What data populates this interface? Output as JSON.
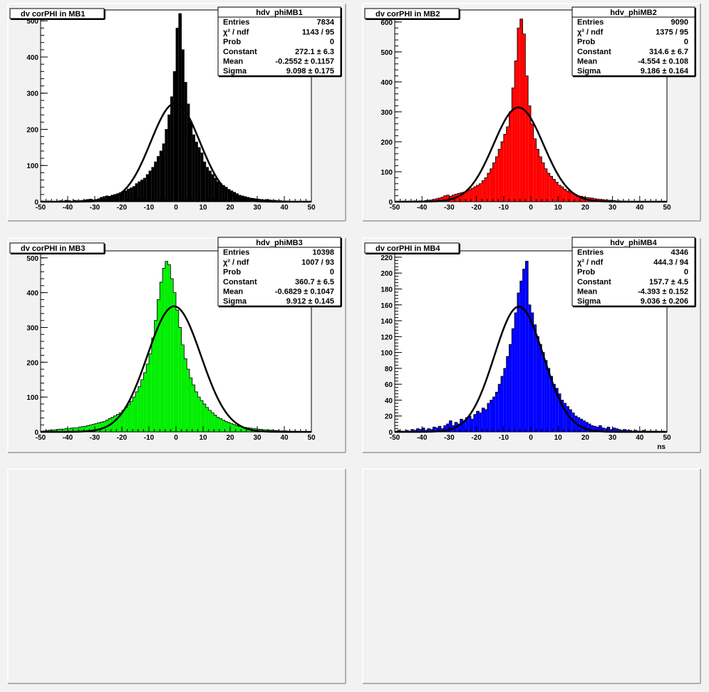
{
  "chart_data": [
    {
      "type": "bar",
      "title": "dv corPHI in MB1",
      "stats": {
        "name": "hdv_phiMB1",
        "rows": [
          {
            "label": "Entries",
            "value": "7834"
          },
          {
            "label": "χ² / ndf",
            "value": "1143 / 95"
          },
          {
            "label": "Prob",
            "value": "0"
          },
          {
            "label": "Constant",
            "value": "272.1 ± 6.3"
          },
          {
            "label": "Mean",
            "value": "-0.2552 ± 0.1157"
          },
          {
            "label": "Sigma",
            "value": "9.098 ± 0.175"
          }
        ]
      },
      "xlabel": "",
      "xlim": [
        -50,
        50
      ],
      "xticks": [
        -50,
        -40,
        -30,
        -20,
        -10,
        0,
        10,
        20,
        30,
        40,
        50
      ],
      "ylim": [
        0,
        530
      ],
      "yticks": [
        0,
        100,
        200,
        300,
        400,
        500
      ],
      "fill_color": "#000000",
      "fit": {
        "constant": 272.1,
        "mean": -0.2552,
        "sigma": 9.098
      },
      "bin_edges_start": -50,
      "bin_width": 1,
      "values": [
        2,
        1,
        2,
        2,
        1,
        1,
        2,
        3,
        2,
        4,
        3,
        1,
        4,
        3,
        3,
        4,
        5,
        6,
        7,
        5,
        6,
        8,
        12,
        14,
        16,
        15,
        18,
        20,
        22,
        25,
        28,
        30,
        35,
        38,
        42,
        50,
        55,
        60,
        65,
        75,
        85,
        95,
        110,
        125,
        140,
        160,
        200,
        240,
        290,
        360,
        480,
        520,
        420,
        330,
        270,
        220,
        185,
        165,
        150,
        135,
        110,
        95,
        85,
        75,
        65,
        55,
        50,
        45,
        40,
        34,
        30,
        26,
        22,
        18,
        16,
        14,
        12,
        10,
        9,
        8,
        7,
        6,
        5,
        6,
        5,
        4,
        4,
        3,
        3,
        2,
        2,
        2,
        1,
        1,
        1,
        1,
        1,
        1,
        0,
        1
      ]
    },
    {
      "type": "bar",
      "title": "dv corPHI in MB2",
      "stats": {
        "name": "hdv_phiMB2",
        "rows": [
          {
            "label": "Entries",
            "value": "9090"
          },
          {
            "label": "χ² / ndf",
            "value": "1375 / 95"
          },
          {
            "label": "Prob",
            "value": "0"
          },
          {
            "label": "Constant",
            "value": "314.6 ± 6.7"
          },
          {
            "label": "Mean",
            "value": "-4.554 ± 0.108"
          },
          {
            "label": "Sigma",
            "value": "9.186 ± 0.164"
          }
        ]
      },
      "xlabel": "",
      "xlim": [
        -50,
        50
      ],
      "xticks": [
        -50,
        -40,
        -30,
        -20,
        -10,
        0,
        10,
        20,
        30,
        40,
        50
      ],
      "ylim": [
        0,
        640
      ],
      "yticks": [
        0,
        100,
        200,
        300,
        400,
        500,
        600
      ],
      "fill_color": "#ff0000",
      "fit": {
        "constant": 314.6,
        "mean": -4.554,
        "sigma": 9.186
      },
      "bin_edges_start": -50,
      "bin_width": 1,
      "values": [
        1,
        1,
        1,
        2,
        1,
        2,
        2,
        3,
        2,
        3,
        2,
        4,
        5,
        6,
        8,
        10,
        12,
        15,
        20,
        22,
        18,
        22,
        25,
        28,
        30,
        32,
        36,
        40,
        45,
        50,
        55,
        60,
        70,
        80,
        95,
        110,
        130,
        150,
        175,
        200,
        225,
        250,
        300,
        380,
        470,
        580,
        610,
        560,
        420,
        320,
        260,
        210,
        175,
        150,
        130,
        110,
        95,
        85,
        75,
        65,
        55,
        50,
        42,
        36,
        32,
        28,
        24,
        20,
        18,
        16,
        14,
        13,
        12,
        10,
        9,
        8,
        7,
        6,
        5,
        5,
        4,
        3,
        3,
        2,
        2,
        2,
        1,
        1,
        1,
        1,
        1,
        1,
        0,
        1,
        0,
        1,
        0,
        0,
        0,
        0
      ]
    },
    {
      "type": "bar",
      "title": "dv corPHI in MB3",
      "stats": {
        "name": "hdv_phiMB3",
        "rows": [
          {
            "label": "Entries",
            "value": "10398"
          },
          {
            "label": "χ² / ndf",
            "value": "1007 / 93"
          },
          {
            "label": "Prob",
            "value": "0"
          },
          {
            "label": "Constant",
            "value": "360.7 ± 6.5"
          },
          {
            "label": "Mean",
            "value": "-0.6829 ± 0.1047"
          },
          {
            "label": "Sigma",
            "value": "9.912 ± 0.145"
          }
        ]
      },
      "xlabel": "",
      "xlim": [
        -50,
        50
      ],
      "xticks": [
        -50,
        -40,
        -30,
        -20,
        -10,
        0,
        10,
        20,
        30,
        40,
        50
      ],
      "ylim": [
        0,
        520
      ],
      "yticks": [
        0,
        100,
        200,
        300,
        400,
        500
      ],
      "fill_color": "#00ee00",
      "fit": {
        "constant": 360.7,
        "mean": -0.6829,
        "sigma": 9.912
      },
      "bin_edges_start": -50,
      "bin_width": 1,
      "values": [
        2,
        3,
        4,
        5,
        5,
        6,
        7,
        8,
        8,
        10,
        9,
        11,
        12,
        12,
        14,
        15,
        16,
        18,
        20,
        22,
        24,
        26,
        28,
        30,
        34,
        38,
        42,
        46,
        50,
        55,
        62,
        70,
        78,
        88,
        100,
        115,
        130,
        150,
        170,
        195,
        225,
        270,
        320,
        380,
        430,
        470,
        490,
        480,
        440,
        400,
        350,
        300,
        250,
        210,
        180,
        155,
        135,
        115,
        100,
        90,
        80,
        70,
        62,
        55,
        48,
        42,
        38,
        34,
        30,
        27,
        24,
        21,
        18,
        16,
        14,
        13,
        12,
        11,
        10,
        9,
        8,
        7,
        6,
        6,
        5,
        5,
        4,
        4,
        3,
        3,
        3,
        2,
        2,
        2,
        2,
        1,
        1,
        1,
        1,
        1
      ]
    },
    {
      "type": "bar",
      "title": "dv corPHI in MB4",
      "stats": {
        "name": "hdv_phiMB4",
        "rows": [
          {
            "label": "Entries",
            "value": "4346"
          },
          {
            "label": "χ² / ndf",
            "value": "444.3 / 94"
          },
          {
            "label": "Prob",
            "value": "0"
          },
          {
            "label": "Constant",
            "value": "157.7 ± 4.5"
          },
          {
            "label": "Mean",
            "value": "-4.393 ± 0.152"
          },
          {
            "label": "Sigma",
            "value": "9.036 ± 0.206"
          }
        ]
      },
      "xlabel": "ns",
      "xlim": [
        -50,
        50
      ],
      "xticks": [
        -50,
        -40,
        -30,
        -20,
        -10,
        0,
        10,
        20,
        30,
        40,
        50
      ],
      "ylim": [
        0,
        228
      ],
      "yticks": [
        0,
        20,
        40,
        60,
        80,
        100,
        120,
        140,
        160,
        180,
        200,
        220
      ],
      "fill_color": "#0000ff",
      "fit": {
        "constant": 157.7,
        "mean": -4.393,
        "sigma": 9.036
      },
      "bin_edges_start": -50,
      "bin_width": 1,
      "values": [
        1,
        2,
        1,
        1,
        2,
        1,
        3,
        2,
        4,
        3,
        5,
        2,
        4,
        3,
        6,
        5,
        7,
        4,
        8,
        10,
        14,
        8,
        12,
        10,
        16,
        14,
        18,
        20,
        16,
        22,
        26,
        24,
        30,
        28,
        36,
        40,
        44,
        50,
        60,
        70,
        80,
        95,
        110,
        130,
        150,
        175,
        190,
        205,
        215,
        160,
        150,
        135,
        120,
        110,
        100,
        90,
        80,
        70,
        60,
        55,
        48,
        40,
        36,
        32,
        28,
        24,
        20,
        18,
        16,
        14,
        12,
        10,
        8,
        7,
        6,
        8,
        5,
        4,
        6,
        3,
        5,
        4,
        3,
        2,
        3,
        2,
        2,
        1,
        2,
        1,
        1,
        2,
        1,
        1,
        1,
        1,
        1,
        0,
        1,
        0
      ]
    }
  ]
}
